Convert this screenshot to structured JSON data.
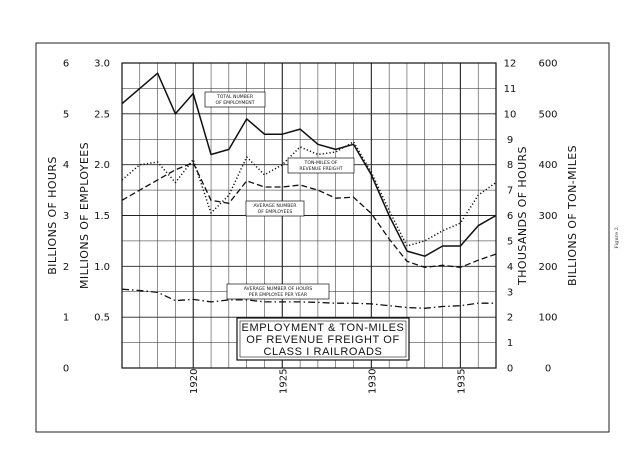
{
  "figure_label": "Figure 2",
  "chart_data": {
    "type": "line",
    "title": [
      "EMPLOYMENT & TON-MILES",
      "OF REVENUE FREIGHT OF",
      "CLASS I RAILROADS"
    ],
    "x": [
      1916,
      1917,
      1918,
      1919,
      1920,
      1921,
      1922,
      1923,
      1924,
      1925,
      1926,
      1927,
      1928,
      1929,
      1930,
      1931,
      1932,
      1933,
      1934,
      1935,
      1936,
      1937
    ],
    "xlim": [
      1916,
      1937
    ],
    "x_ticks": [
      1920,
      1925,
      1930,
      1935
    ],
    "axes": {
      "billions_of_hours": {
        "label": "BILLIONS OF HOURS",
        "ticks": [
          "0",
          "1",
          "2",
          "3",
          "4",
          "5",
          "6"
        ],
        "range": [
          0,
          6
        ]
      },
      "millions_of_employees": {
        "label": "MILLIONS OF EMPLOYEES",
        "ticks": [
          "0.5",
          "1.0",
          "1.5",
          "2.0",
          "2.5",
          "3.0"
        ],
        "range": [
          0,
          3
        ]
      },
      "thousands_of_hours": {
        "label": "THOUSANDS OF HOURS",
        "ticks": [
          "0",
          "1",
          "2",
          "3",
          "4",
          "5",
          "6",
          "7",
          "8",
          "9",
          "10",
          "11",
          "12"
        ],
        "range": [
          0,
          12
        ]
      },
      "billions_of_ton_miles": {
        "label": "BILLIONS OF TON-MILES",
        "ticks": [
          "0",
          "100",
          "200",
          "300",
          "400",
          "500",
          "600"
        ],
        "range": [
          0,
          600
        ]
      }
    },
    "series": [
      {
        "name": "TOTAL NUMBER OF EMPLOYMENT",
        "axis": "billions_of_hours",
        "style": "solid",
        "values": [
          5.2,
          5.5,
          5.8,
          5.0,
          5.4,
          4.2,
          4.3,
          4.9,
          4.6,
          4.6,
          4.7,
          4.4,
          4.3,
          4.4,
          3.8,
          3.0,
          2.3,
          2.2,
          2.4,
          2.4,
          2.8,
          3.0
        ]
      },
      {
        "name": "TON-MILES OF REVENUE FREIGHT",
        "axis": "billions_of_ton_miles",
        "style": "dotted",
        "values": [
          370,
          400,
          405,
          365,
          410,
          305,
          340,
          415,
          380,
          400,
          435,
          420,
          425,
          445,
          385,
          310,
          240,
          250,
          270,
          285,
          340,
          365
        ]
      },
      {
        "name": "AVERAGE NUMBER OF EMPLOYEES",
        "axis": "millions_of_employees",
        "style": "dashed",
        "values": [
          1.65,
          1.75,
          1.85,
          1.95,
          2.02,
          1.65,
          1.62,
          1.84,
          1.78,
          1.78,
          1.8,
          1.75,
          1.67,
          1.68,
          1.52,
          1.27,
          1.05,
          0.99,
          1.01,
          0.99,
          1.06,
          1.12
        ]
      },
      {
        "name": "AVERAGE NUMBER OF HOURS PER EMPLOYEE PER YEAR",
        "axis": "thousands_of_hours",
        "style": "dash-dot",
        "values": [
          3.1,
          3.05,
          2.98,
          2.65,
          2.7,
          2.6,
          2.68,
          2.68,
          2.6,
          2.6,
          2.6,
          2.58,
          2.55,
          2.55,
          2.52,
          2.45,
          2.38,
          2.35,
          2.42,
          2.45,
          2.55,
          2.55
        ]
      }
    ],
    "grid": true
  }
}
